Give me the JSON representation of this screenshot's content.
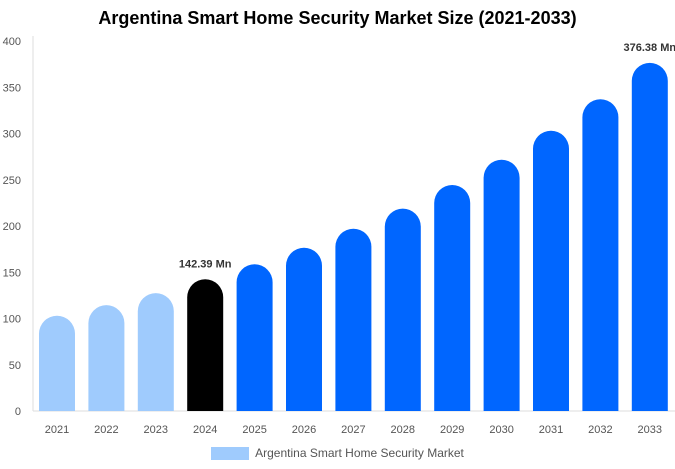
{
  "chart_data": {
    "type": "bar",
    "title": "Argentina Smart Home Security Market Size (2021-2033)",
    "categories": [
      "2021",
      "2022",
      "2023",
      "2024",
      "2025",
      "2026",
      "2027",
      "2028",
      "2029",
      "2030",
      "2031",
      "2032",
      "2033"
    ],
    "series": [
      {
        "name": "Argentina Smart Home Security Market",
        "values": [
          103,
          114.4,
          127.4,
          142.39,
          158.6,
          176.5,
          197,
          218.8,
          244.3,
          271.6,
          303,
          337,
          376.38
        ]
      }
    ],
    "data_labels": {
      "2024": "142.39 Mn",
      "2033": "376.38 Mn"
    },
    "ylim": [
      0,
      400
    ],
    "yticks": [
      0,
      50,
      100,
      150,
      200,
      250,
      300,
      350,
      400
    ],
    "grid": false,
    "legend_position": "bottom",
    "colors": {
      "historical": "#9fcbfd",
      "base_year": "#000000",
      "forecast": "#0066ff"
    },
    "color_by_category": [
      "historical",
      "historical",
      "historical",
      "base_year",
      "forecast",
      "forecast",
      "forecast",
      "forecast",
      "forecast",
      "forecast",
      "forecast",
      "forecast",
      "forecast"
    ]
  }
}
